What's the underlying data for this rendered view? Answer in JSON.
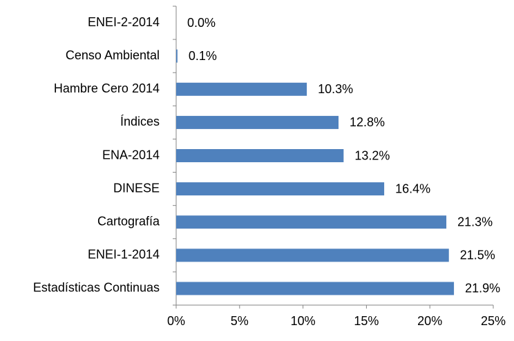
{
  "chart_data": {
    "type": "bar",
    "orientation": "horizontal",
    "categories": [
      "ENEI-2-2014",
      "Censo Ambiental",
      "Hambre Cero 2014",
      "Índices",
      "ENA-2014",
      "DINESE",
      "Cartografía",
      "ENEI-1-2014",
      "Estadísticas Continuas"
    ],
    "values": [
      0.0,
      0.1,
      10.3,
      12.8,
      13.2,
      16.4,
      21.3,
      21.5,
      21.9
    ],
    "value_labels": [
      "0.0%",
      "0.1%",
      "10.3%",
      "12.8%",
      "13.2%",
      "16.4%",
      "21.3%",
      "21.5%",
      "21.9%"
    ],
    "color": "#4f81bd",
    "xlim": [
      0,
      25
    ],
    "xticks": [
      {
        "value": 0,
        "label": "0%"
      },
      {
        "value": 5,
        "label": "5%"
      },
      {
        "value": 10,
        "label": "10%"
      },
      {
        "value": 15,
        "label": "15%"
      },
      {
        "value": 20,
        "label": "20%"
      },
      {
        "value": 25,
        "label": "25%"
      }
    ],
    "grid": false
  }
}
